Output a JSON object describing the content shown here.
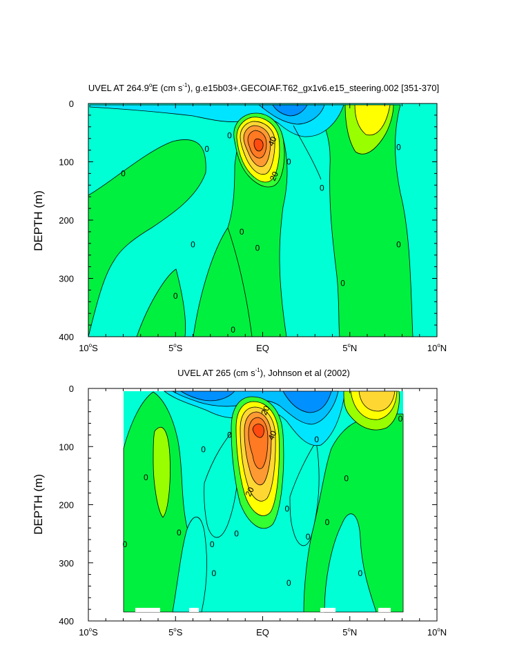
{
  "chart_data": [
    {
      "type": "contour",
      "title_prefix": "UVEL AT 264.9",
      "title_deg": "o",
      "title_unit_open": "E (cm s",
      "title_unit_exp": "-1",
      "title_rest": "), g.e15b03+.GECOIAF.T62_gx1v6.e15_steering.002 [351-370]",
      "ylabel": "DEPTH (m)",
      "xlim": [
        -10,
        10
      ],
      "ylim": [
        400,
        0
      ],
      "x_ticks": [
        {
          "value": -10,
          "num": "10",
          "hemi": "S"
        },
        {
          "value": -5,
          "num": "5",
          "hemi": "S"
        },
        {
          "value": 0,
          "num": "EQ",
          "hemi": ""
        },
        {
          "value": 5,
          "num": "5",
          "hemi": "N"
        },
        {
          "value": 10,
          "num": "10",
          "hemi": "N"
        }
      ],
      "y_ticks": [
        "0",
        "100",
        "200",
        "300",
        "400"
      ],
      "y_tick_values": [
        0,
        100,
        200,
        300,
        400
      ],
      "contour_labels": [
        {
          "text": "0",
          "x": -8.0,
          "y": 120
        },
        {
          "text": "0",
          "x": -3.2,
          "y": 78
        },
        {
          "text": "0",
          "x": -1.9,
          "y": 55
        },
        {
          "text": "0",
          "x": 1.5,
          "y": 100
        },
        {
          "text": "0",
          "x": 3.4,
          "y": 145
        },
        {
          "text": "0",
          "x": 7.8,
          "y": 75
        },
        {
          "text": "0",
          "x": -4.0,
          "y": 242
        },
        {
          "text": "0",
          "x": -1.2,
          "y": 220
        },
        {
          "text": "0",
          "x": -0.3,
          "y": 248
        },
        {
          "text": "0",
          "x": 7.8,
          "y": 242
        },
        {
          "text": "0",
          "x": -5.0,
          "y": 330
        },
        {
          "text": "0",
          "x": 4.6,
          "y": 308
        },
        {
          "text": "0",
          "x": -1.7,
          "y": 388
        },
        {
          "text": "40",
          "x": 0.7,
          "y": 62
        },
        {
          "text": "20",
          "x": 0.8,
          "y": 122
        }
      ]
    },
    {
      "type": "contour",
      "title_prefix": "UVEL AT 265 (cm s",
      "title_unit_exp": "-1",
      "title_rest": "), Johnson et al (2002)",
      "ylabel": "DEPTH (m)",
      "xlim": [
        -10,
        10
      ],
      "ylim": [
        400,
        0
      ],
      "x_ticks": [
        {
          "value": -10,
          "num": "10",
          "hemi": "S"
        },
        {
          "value": -5,
          "num": "5",
          "hemi": "S"
        },
        {
          "value": 0,
          "num": "EQ",
          "hemi": ""
        },
        {
          "value": 5,
          "num": "5",
          "hemi": "N"
        },
        {
          "value": 10,
          "num": "10",
          "hemi": "N"
        }
      ],
      "y_ticks": [
        "0",
        "100",
        "200",
        "300",
        "400"
      ],
      "y_tick_values": [
        0,
        100,
        200,
        300,
        400
      ],
      "contour_labels": [
        {
          "text": "0",
          "x": -7.9,
          "y": 268
        },
        {
          "text": "0",
          "x": -6.7,
          "y": 153
        },
        {
          "text": "0",
          "x": -3.4,
          "y": 105
        },
        {
          "text": "0",
          "x": -1.9,
          "y": 80
        },
        {
          "text": "0",
          "x": -4.8,
          "y": 248
        },
        {
          "text": "0",
          "x": -2.9,
          "y": 268
        },
        {
          "text": "0",
          "x": -2.8,
          "y": 318
        },
        {
          "text": "0",
          "x": -1.5,
          "y": 250
        },
        {
          "text": "0",
          "x": 1.4,
          "y": 207
        },
        {
          "text": "0",
          "x": 2.6,
          "y": 255
        },
        {
          "text": "0",
          "x": 3.1,
          "y": 88
        },
        {
          "text": "0",
          "x": 3.7,
          "y": 230
        },
        {
          "text": "0",
          "x": 4.8,
          "y": 155
        },
        {
          "text": "0",
          "x": 5.6,
          "y": 318
        },
        {
          "text": "0",
          "x": 1.5,
          "y": 335
        },
        {
          "text": "0",
          "x": 7.9,
          "y": 52
        },
        {
          "text": "40",
          "x": 0.7,
          "y": 78
        },
        {
          "text": "20",
          "x": 0.3,
          "y": 35
        },
        {
          "text": "20",
          "x": -0.6,
          "y": 175
        }
      ]
    }
  ],
  "colors": {
    "cyan_light": "#00FFD5",
    "cyan": "#00E5FF",
    "sky": "#00BFFF",
    "blue": "#0090FF",
    "green": "#00F040",
    "green_bright": "#33FF33",
    "lime": "#99FF00",
    "yellow": "#FFFF00",
    "gold": "#FFD733",
    "orange": "#FF9A33",
    "orange_dark": "#FF7A22",
    "red": "#FF4A10"
  }
}
